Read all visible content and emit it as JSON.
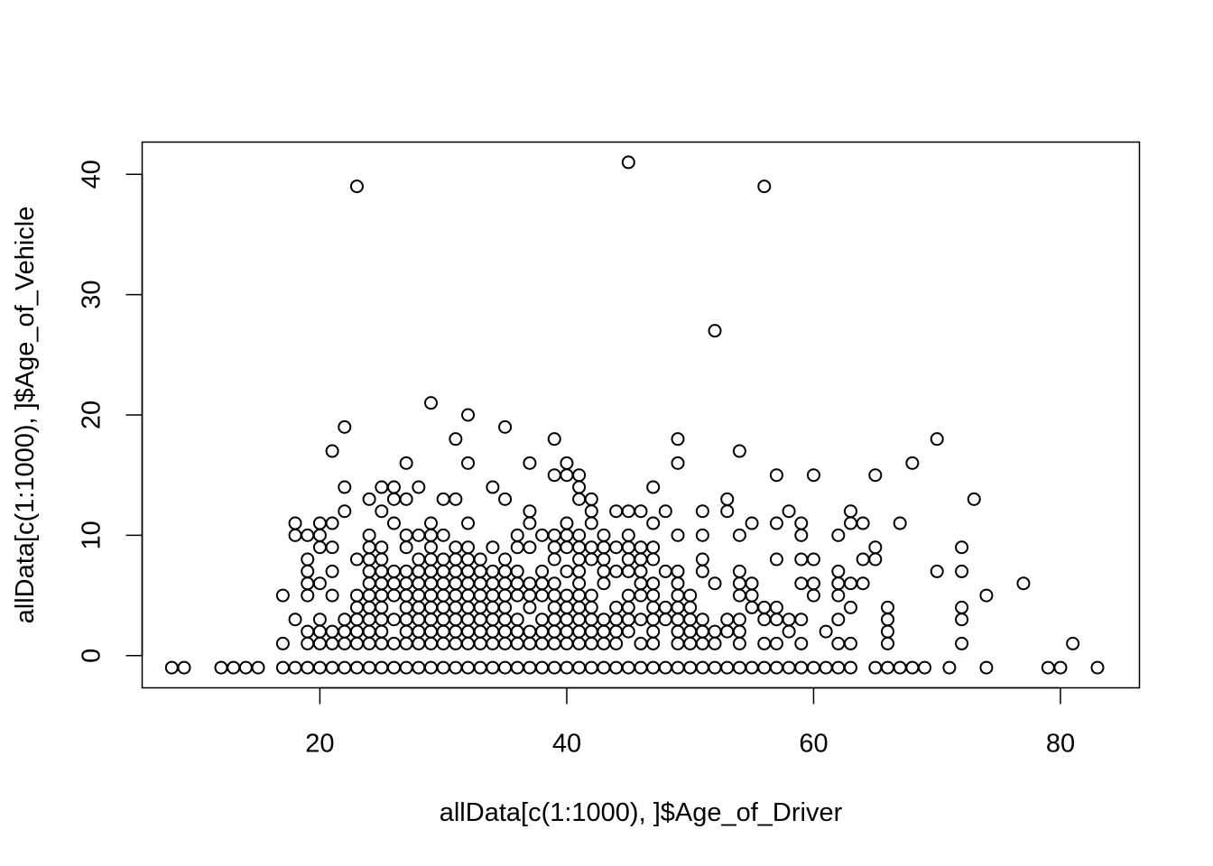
{
  "chart_data": {
    "type": "scatter",
    "title": "",
    "xlabel": "allData[c(1:1000), ]$Age_of_Driver",
    "ylabel": "allData[c(1:1000), ]$Age_of_Vehicle",
    "xlim": [
      5.6,
      86.4
    ],
    "ylim": [
      -2.68,
      42.68
    ],
    "x_ticks": [
      20,
      40,
      60,
      80
    ],
    "y_ticks": [
      0,
      10,
      20,
      30,
      40
    ],
    "grid": false,
    "legend": "none",
    "marker": "open-circle",
    "colors": {
      "point": "#000000",
      "axis": "#000000",
      "background": "#ffffff"
    },
    "points": [
      [
        8,
        -1
      ],
      [
        9,
        -1
      ],
      [
        12,
        -1
      ],
      [
        13,
        -1
      ],
      [
        14,
        -1
      ],
      [
        15,
        -1
      ],
      [
        17,
        -1
      ],
      [
        17,
        1
      ],
      [
        17,
        5
      ],
      [
        18,
        -1
      ],
      [
        18,
        3
      ],
      [
        18,
        10
      ],
      [
        18,
        11
      ],
      [
        19,
        -1
      ],
      [
        19,
        1
      ],
      [
        19,
        2
      ],
      [
        19,
        5
      ],
      [
        19,
        6
      ],
      [
        19,
        7
      ],
      [
        19,
        8
      ],
      [
        19,
        10
      ],
      [
        20,
        -1
      ],
      [
        20,
        1
      ],
      [
        20,
        2
      ],
      [
        20,
        3
      ],
      [
        20,
        6
      ],
      [
        20,
        9
      ],
      [
        20,
        10
      ],
      [
        20,
        11
      ],
      [
        21,
        -1
      ],
      [
        21,
        1
      ],
      [
        21,
        2
      ],
      [
        21,
        5
      ],
      [
        21,
        7
      ],
      [
        21,
        9
      ],
      [
        21,
        11
      ],
      [
        21,
        17
      ],
      [
        22,
        -1
      ],
      [
        22,
        1
      ],
      [
        22,
        2
      ],
      [
        22,
        3
      ],
      [
        22,
        12
      ],
      [
        22,
        14
      ],
      [
        22,
        19
      ],
      [
        23,
        -1
      ],
      [
        23,
        1
      ],
      [
        23,
        2
      ],
      [
        23,
        3
      ],
      [
        23,
        4
      ],
      [
        23,
        5
      ],
      [
        23,
        8
      ],
      [
        23,
        39
      ],
      [
        24,
        -1
      ],
      [
        24,
        1
      ],
      [
        24,
        2
      ],
      [
        24,
        3
      ],
      [
        24,
        4
      ],
      [
        24,
        5
      ],
      [
        24,
        6
      ],
      [
        24,
        7
      ],
      [
        24,
        8
      ],
      [
        24,
        9
      ],
      [
        24,
        10
      ],
      [
        24,
        13
      ],
      [
        25,
        -1
      ],
      [
        25,
        1
      ],
      [
        25,
        2
      ],
      [
        25,
        3
      ],
      [
        25,
        4
      ],
      [
        25,
        5
      ],
      [
        25,
        6
      ],
      [
        25,
        7
      ],
      [
        25,
        8
      ],
      [
        25,
        9
      ],
      [
        25,
        12
      ],
      [
        25,
        14
      ],
      [
        26,
        -1
      ],
      [
        26,
        1
      ],
      [
        26,
        3
      ],
      [
        26,
        5
      ],
      [
        26,
        6
      ],
      [
        26,
        7
      ],
      [
        26,
        11
      ],
      [
        26,
        13
      ],
      [
        26,
        14
      ],
      [
        27,
        -1
      ],
      [
        27,
        1
      ],
      [
        27,
        2
      ],
      [
        27,
        3
      ],
      [
        27,
        4
      ],
      [
        27,
        5
      ],
      [
        27,
        6
      ],
      [
        27,
        7
      ],
      [
        27,
        9
      ],
      [
        27,
        10
      ],
      [
        27,
        13
      ],
      [
        27,
        16
      ],
      [
        28,
        -1
      ],
      [
        28,
        1
      ],
      [
        28,
        2
      ],
      [
        28,
        3
      ],
      [
        28,
        4
      ],
      [
        28,
        5
      ],
      [
        28,
        6
      ],
      [
        28,
        7
      ],
      [
        28,
        8
      ],
      [
        28,
        10
      ],
      [
        28,
        14
      ],
      [
        29,
        -1
      ],
      [
        29,
        1
      ],
      [
        29,
        2
      ],
      [
        29,
        3
      ],
      [
        29,
        4
      ],
      [
        29,
        5
      ],
      [
        29,
        6
      ],
      [
        29,
        7
      ],
      [
        29,
        8
      ],
      [
        29,
        9
      ],
      [
        29,
        10
      ],
      [
        29,
        11
      ],
      [
        29,
        21
      ],
      [
        30,
        -1
      ],
      [
        30,
        1
      ],
      [
        30,
        2
      ],
      [
        30,
        3
      ],
      [
        30,
        4
      ],
      [
        30,
        5
      ],
      [
        30,
        6
      ],
      [
        30,
        7
      ],
      [
        30,
        8
      ],
      [
        30,
        10
      ],
      [
        30,
        13
      ],
      [
        31,
        -1
      ],
      [
        31,
        1
      ],
      [
        31,
        2
      ],
      [
        31,
        3
      ],
      [
        31,
        4
      ],
      [
        31,
        5
      ],
      [
        31,
        6
      ],
      [
        31,
        7
      ],
      [
        31,
        8
      ],
      [
        31,
        9
      ],
      [
        31,
        13
      ],
      [
        31,
        18
      ],
      [
        32,
        -1
      ],
      [
        32,
        1
      ],
      [
        32,
        2
      ],
      [
        32,
        3
      ],
      [
        32,
        4
      ],
      [
        32,
        5
      ],
      [
        32,
        6
      ],
      [
        32,
        7
      ],
      [
        32,
        8
      ],
      [
        32,
        9
      ],
      [
        32,
        11
      ],
      [
        32,
        16
      ],
      [
        32,
        20
      ],
      [
        33,
        -1
      ],
      [
        33,
        1
      ],
      [
        33,
        2
      ],
      [
        33,
        3
      ],
      [
        33,
        4
      ],
      [
        33,
        5
      ],
      [
        33,
        6
      ],
      [
        33,
        7
      ],
      [
        33,
        8
      ],
      [
        34,
        -1
      ],
      [
        34,
        1
      ],
      [
        34,
        2
      ],
      [
        34,
        3
      ],
      [
        34,
        4
      ],
      [
        34,
        5
      ],
      [
        34,
        6
      ],
      [
        34,
        7
      ],
      [
        34,
        9
      ],
      [
        34,
        14
      ],
      [
        35,
        -1
      ],
      [
        35,
        1
      ],
      [
        35,
        2
      ],
      [
        35,
        3
      ],
      [
        35,
        4
      ],
      [
        35,
        5
      ],
      [
        35,
        6
      ],
      [
        35,
        7
      ],
      [
        35,
        8
      ],
      [
        35,
        13
      ],
      [
        35,
        19
      ],
      [
        36,
        -1
      ],
      [
        36,
        1
      ],
      [
        36,
        2
      ],
      [
        36,
        3
      ],
      [
        36,
        5
      ],
      [
        36,
        6
      ],
      [
        36,
        7
      ],
      [
        36,
        9
      ],
      [
        36,
        10
      ],
      [
        37,
        -1
      ],
      [
        37,
        1
      ],
      [
        37,
        2
      ],
      [
        37,
        4
      ],
      [
        37,
        5
      ],
      [
        37,
        6
      ],
      [
        37,
        9
      ],
      [
        37,
        11
      ],
      [
        37,
        12
      ],
      [
        37,
        16
      ],
      [
        38,
        -1
      ],
      [
        38,
        1
      ],
      [
        38,
        2
      ],
      [
        38,
        3
      ],
      [
        38,
        5
      ],
      [
        38,
        6
      ],
      [
        38,
        7
      ],
      [
        38,
        10
      ],
      [
        39,
        -1
      ],
      [
        39,
        1
      ],
      [
        39,
        2
      ],
      [
        39,
        3
      ],
      [
        39,
        4
      ],
      [
        39,
        5
      ],
      [
        39,
        6
      ],
      [
        39,
        8
      ],
      [
        39,
        9
      ],
      [
        39,
        10
      ],
      [
        39,
        15
      ],
      [
        39,
        18
      ],
      [
        40,
        -1
      ],
      [
        40,
        1
      ],
      [
        40,
        2
      ],
      [
        40,
        3
      ],
      [
        40,
        4
      ],
      [
        40,
        5
      ],
      [
        40,
        7
      ],
      [
        40,
        9
      ],
      [
        40,
        10
      ],
      [
        40,
        11
      ],
      [
        40,
        15
      ],
      [
        40,
        16
      ],
      [
        41,
        -1
      ],
      [
        41,
        1
      ],
      [
        41,
        2
      ],
      [
        41,
        3
      ],
      [
        41,
        4
      ],
      [
        41,
        5
      ],
      [
        41,
        6
      ],
      [
        41,
        7
      ],
      [
        41,
        8
      ],
      [
        41,
        9
      ],
      [
        41,
        10
      ],
      [
        41,
        13
      ],
      [
        41,
        14
      ],
      [
        41,
        15
      ],
      [
        42,
        -1
      ],
      [
        42,
        1
      ],
      [
        42,
        2
      ],
      [
        42,
        3
      ],
      [
        42,
        4
      ],
      [
        42,
        5
      ],
      [
        42,
        8
      ],
      [
        42,
        9
      ],
      [
        42,
        11
      ],
      [
        42,
        12
      ],
      [
        42,
        13
      ],
      [
        43,
        -1
      ],
      [
        43,
        1
      ],
      [
        43,
        2
      ],
      [
        43,
        3
      ],
      [
        43,
        6
      ],
      [
        43,
        7
      ],
      [
        43,
        8
      ],
      [
        43,
        9
      ],
      [
        43,
        10
      ],
      [
        44,
        -1
      ],
      [
        44,
        1
      ],
      [
        44,
        2
      ],
      [
        44,
        3
      ],
      [
        44,
        4
      ],
      [
        44,
        7
      ],
      [
        44,
        9
      ],
      [
        44,
        12
      ],
      [
        45,
        -1
      ],
      [
        45,
        2
      ],
      [
        45,
        3
      ],
      [
        45,
        4
      ],
      [
        45,
        5
      ],
      [
        45,
        7
      ],
      [
        45,
        8
      ],
      [
        45,
        9
      ],
      [
        45,
        10
      ],
      [
        45,
        12
      ],
      [
        45,
        41
      ],
      [
        46,
        -1
      ],
      [
        46,
        1
      ],
      [
        46,
        3
      ],
      [
        46,
        5
      ],
      [
        46,
        6
      ],
      [
        46,
        7
      ],
      [
        46,
        8
      ],
      [
        46,
        9
      ],
      [
        46,
        12
      ],
      [
        47,
        -1
      ],
      [
        47,
        1
      ],
      [
        47,
        2
      ],
      [
        47,
        3
      ],
      [
        47,
        4
      ],
      [
        47,
        5
      ],
      [
        47,
        6
      ],
      [
        47,
        8
      ],
      [
        47,
        9
      ],
      [
        47,
        11
      ],
      [
        47,
        14
      ],
      [
        48,
        -1
      ],
      [
        48,
        3
      ],
      [
        48,
        4
      ],
      [
        48,
        7
      ],
      [
        48,
        12
      ],
      [
        49,
        -1
      ],
      [
        49,
        1
      ],
      [
        49,
        2
      ],
      [
        49,
        3
      ],
      [
        49,
        4
      ],
      [
        49,
        5
      ],
      [
        49,
        6
      ],
      [
        49,
        7
      ],
      [
        49,
        10
      ],
      [
        49,
        16
      ],
      [
        49,
        18
      ],
      [
        50,
        -1
      ],
      [
        50,
        1
      ],
      [
        50,
        2
      ],
      [
        50,
        3
      ],
      [
        50,
        4
      ],
      [
        50,
        5
      ],
      [
        51,
        -1
      ],
      [
        51,
        1
      ],
      [
        51,
        2
      ],
      [
        51,
        3
      ],
      [
        51,
        7
      ],
      [
        51,
        8
      ],
      [
        51,
        10
      ],
      [
        51,
        12
      ],
      [
        52,
        -1
      ],
      [
        52,
        1
      ],
      [
        52,
        2
      ],
      [
        52,
        6
      ],
      [
        52,
        27
      ],
      [
        53,
        -1
      ],
      [
        53,
        2
      ],
      [
        53,
        3
      ],
      [
        53,
        12
      ],
      [
        53,
        13
      ],
      [
        54,
        -1
      ],
      [
        54,
        1
      ],
      [
        54,
        2
      ],
      [
        54,
        3
      ],
      [
        54,
        5
      ],
      [
        54,
        6
      ],
      [
        54,
        7
      ],
      [
        54,
        10
      ],
      [
        54,
        17
      ],
      [
        55,
        -1
      ],
      [
        55,
        4
      ],
      [
        55,
        5
      ],
      [
        55,
        6
      ],
      [
        55,
        11
      ],
      [
        56,
        -1
      ],
      [
        56,
        1
      ],
      [
        56,
        3
      ],
      [
        56,
        4
      ],
      [
        56,
        39
      ],
      [
        57,
        -1
      ],
      [
        57,
        1
      ],
      [
        57,
        3
      ],
      [
        57,
        4
      ],
      [
        57,
        8
      ],
      [
        57,
        11
      ],
      [
        57,
        15
      ],
      [
        58,
        -1
      ],
      [
        58,
        2
      ],
      [
        58,
        3
      ],
      [
        58,
        12
      ],
      [
        59,
        -1
      ],
      [
        59,
        1
      ],
      [
        59,
        3
      ],
      [
        59,
        6
      ],
      [
        59,
        8
      ],
      [
        59,
        10
      ],
      [
        59,
        11
      ],
      [
        60,
        -1
      ],
      [
        60,
        5
      ],
      [
        60,
        6
      ],
      [
        60,
        8
      ],
      [
        60,
        15
      ],
      [
        61,
        -1
      ],
      [
        61,
        2
      ],
      [
        62,
        -1
      ],
      [
        62,
        1
      ],
      [
        62,
        3
      ],
      [
        62,
        5
      ],
      [
        62,
        6
      ],
      [
        62,
        7
      ],
      [
        62,
        10
      ],
      [
        63,
        -1
      ],
      [
        63,
        1
      ],
      [
        63,
        4
      ],
      [
        63,
        6
      ],
      [
        63,
        11
      ],
      [
        63,
        12
      ],
      [
        64,
        6
      ],
      [
        64,
        8
      ],
      [
        64,
        11
      ],
      [
        65,
        -1
      ],
      [
        65,
        8
      ],
      [
        65,
        9
      ],
      [
        65,
        15
      ],
      [
        66,
        -1
      ],
      [
        66,
        1
      ],
      [
        66,
        2
      ],
      [
        66,
        3
      ],
      [
        66,
        4
      ],
      [
        67,
        -1
      ],
      [
        67,
        11
      ],
      [
        68,
        -1
      ],
      [
        68,
        16
      ],
      [
        69,
        -1
      ],
      [
        70,
        7
      ],
      [
        70,
        18
      ],
      [
        71,
        -1
      ],
      [
        72,
        1
      ],
      [
        72,
        3
      ],
      [
        72,
        4
      ],
      [
        72,
        7
      ],
      [
        72,
        9
      ],
      [
        73,
        13
      ],
      [
        74,
        -1
      ],
      [
        74,
        5
      ],
      [
        77,
        6
      ],
      [
        79,
        -1
      ],
      [
        80,
        -1
      ],
      [
        81,
        1
      ],
      [
        83,
        -1
      ]
    ]
  }
}
